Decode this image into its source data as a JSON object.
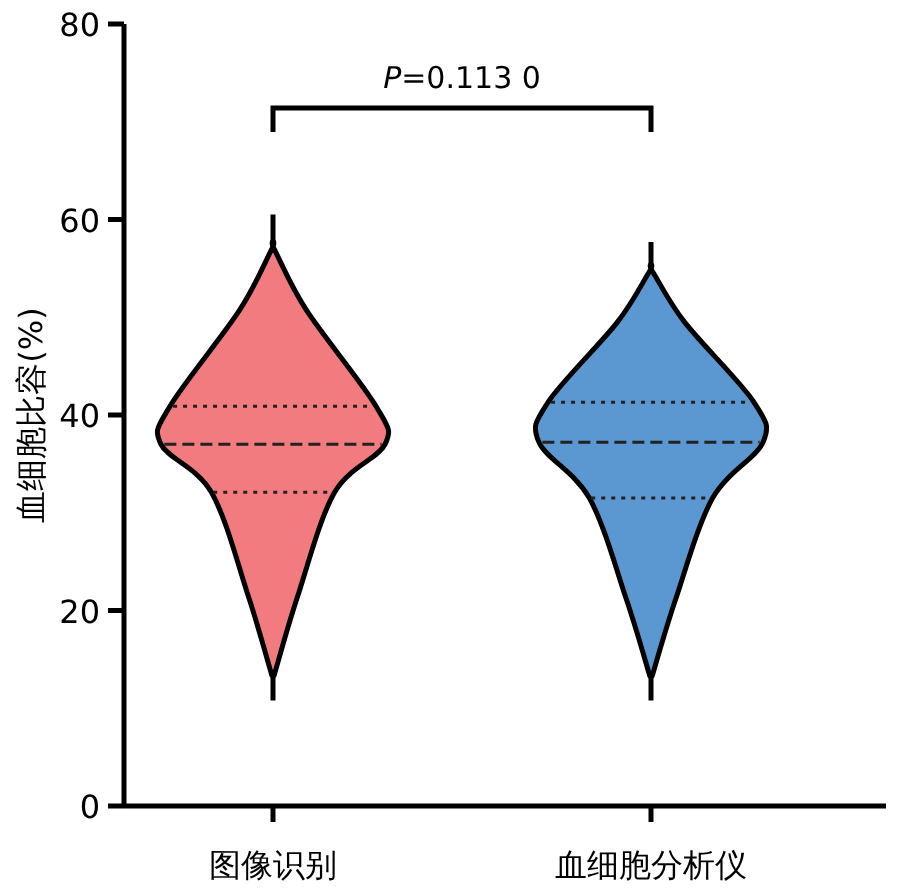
{
  "chart_data": {
    "type": "box",
    "ylabel": "血细胞比容(%)",
    "categories": [
      "图像识别",
      "血细胞分析仪"
    ],
    "colors": [
      "#f27b80",
      "#5b97d0"
    ],
    "boxes": [
      {
        "low": 10.8,
        "q1": 32.1,
        "median": 37.0,
        "q3": 40.9,
        "high": 60.5
      },
      {
        "low": 10.8,
        "q1": 31.5,
        "median": 37.2,
        "q3": 41.3,
        "high": 57.7
      }
    ],
    "ylim": [
      0,
      80
    ],
    "yticks": [
      0,
      20,
      40,
      60,
      80
    ],
    "annotations": [
      "*P*=0.113 0"
    ]
  }
}
